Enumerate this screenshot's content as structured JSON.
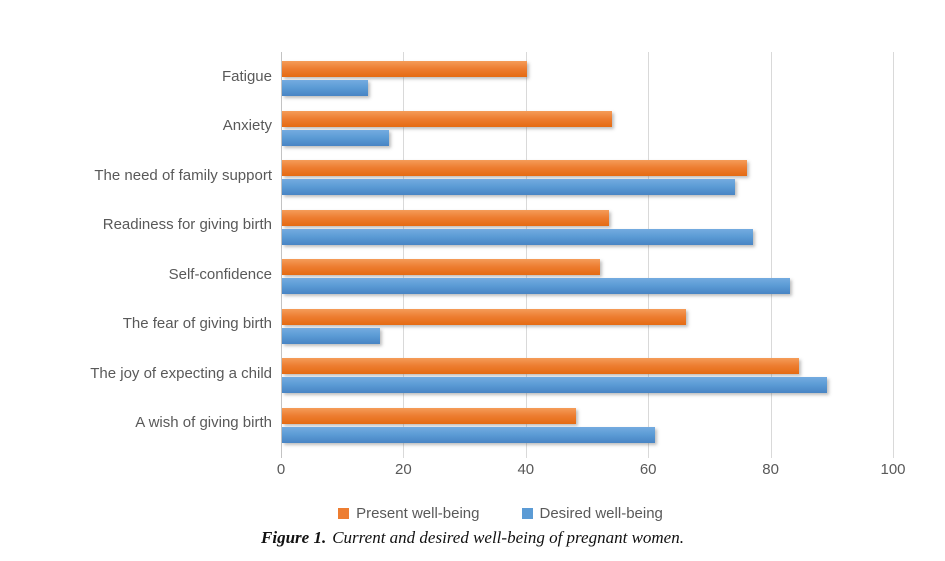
{
  "chart_data": {
    "type": "bar",
    "orientation": "horizontal",
    "categories": [
      "Fatigue",
      "Anxiety",
      "The need of family support",
      "Readiness for giving birth",
      "Self-confidence",
      "The fear of giving birth",
      "The joy of expecting a child",
      "A wish of giving birth"
    ],
    "series": [
      {
        "name": "Present well-being",
        "color": "#ED7D31",
        "values": [
          40,
          54,
          76,
          53.5,
          52,
          66,
          84.5,
          48
        ]
      },
      {
        "name": "Desired well-being",
        "color": "#5B9BD5",
        "values": [
          14,
          17.5,
          74,
          77,
          83,
          16,
          89,
          61
        ]
      }
    ],
    "x_ticks": [
      0,
      20,
      40,
      60,
      80,
      100
    ],
    "xlim": [
      0,
      100
    ],
    "grid": "vertical-only",
    "legend_position": "bottom",
    "background": "#FFFFFF",
    "label_color": "#595959",
    "gridline_color": "#D9D9D9"
  },
  "caption": {
    "label": "Figure 1.",
    "text": "Current and desired well-being of pregnant women."
  }
}
